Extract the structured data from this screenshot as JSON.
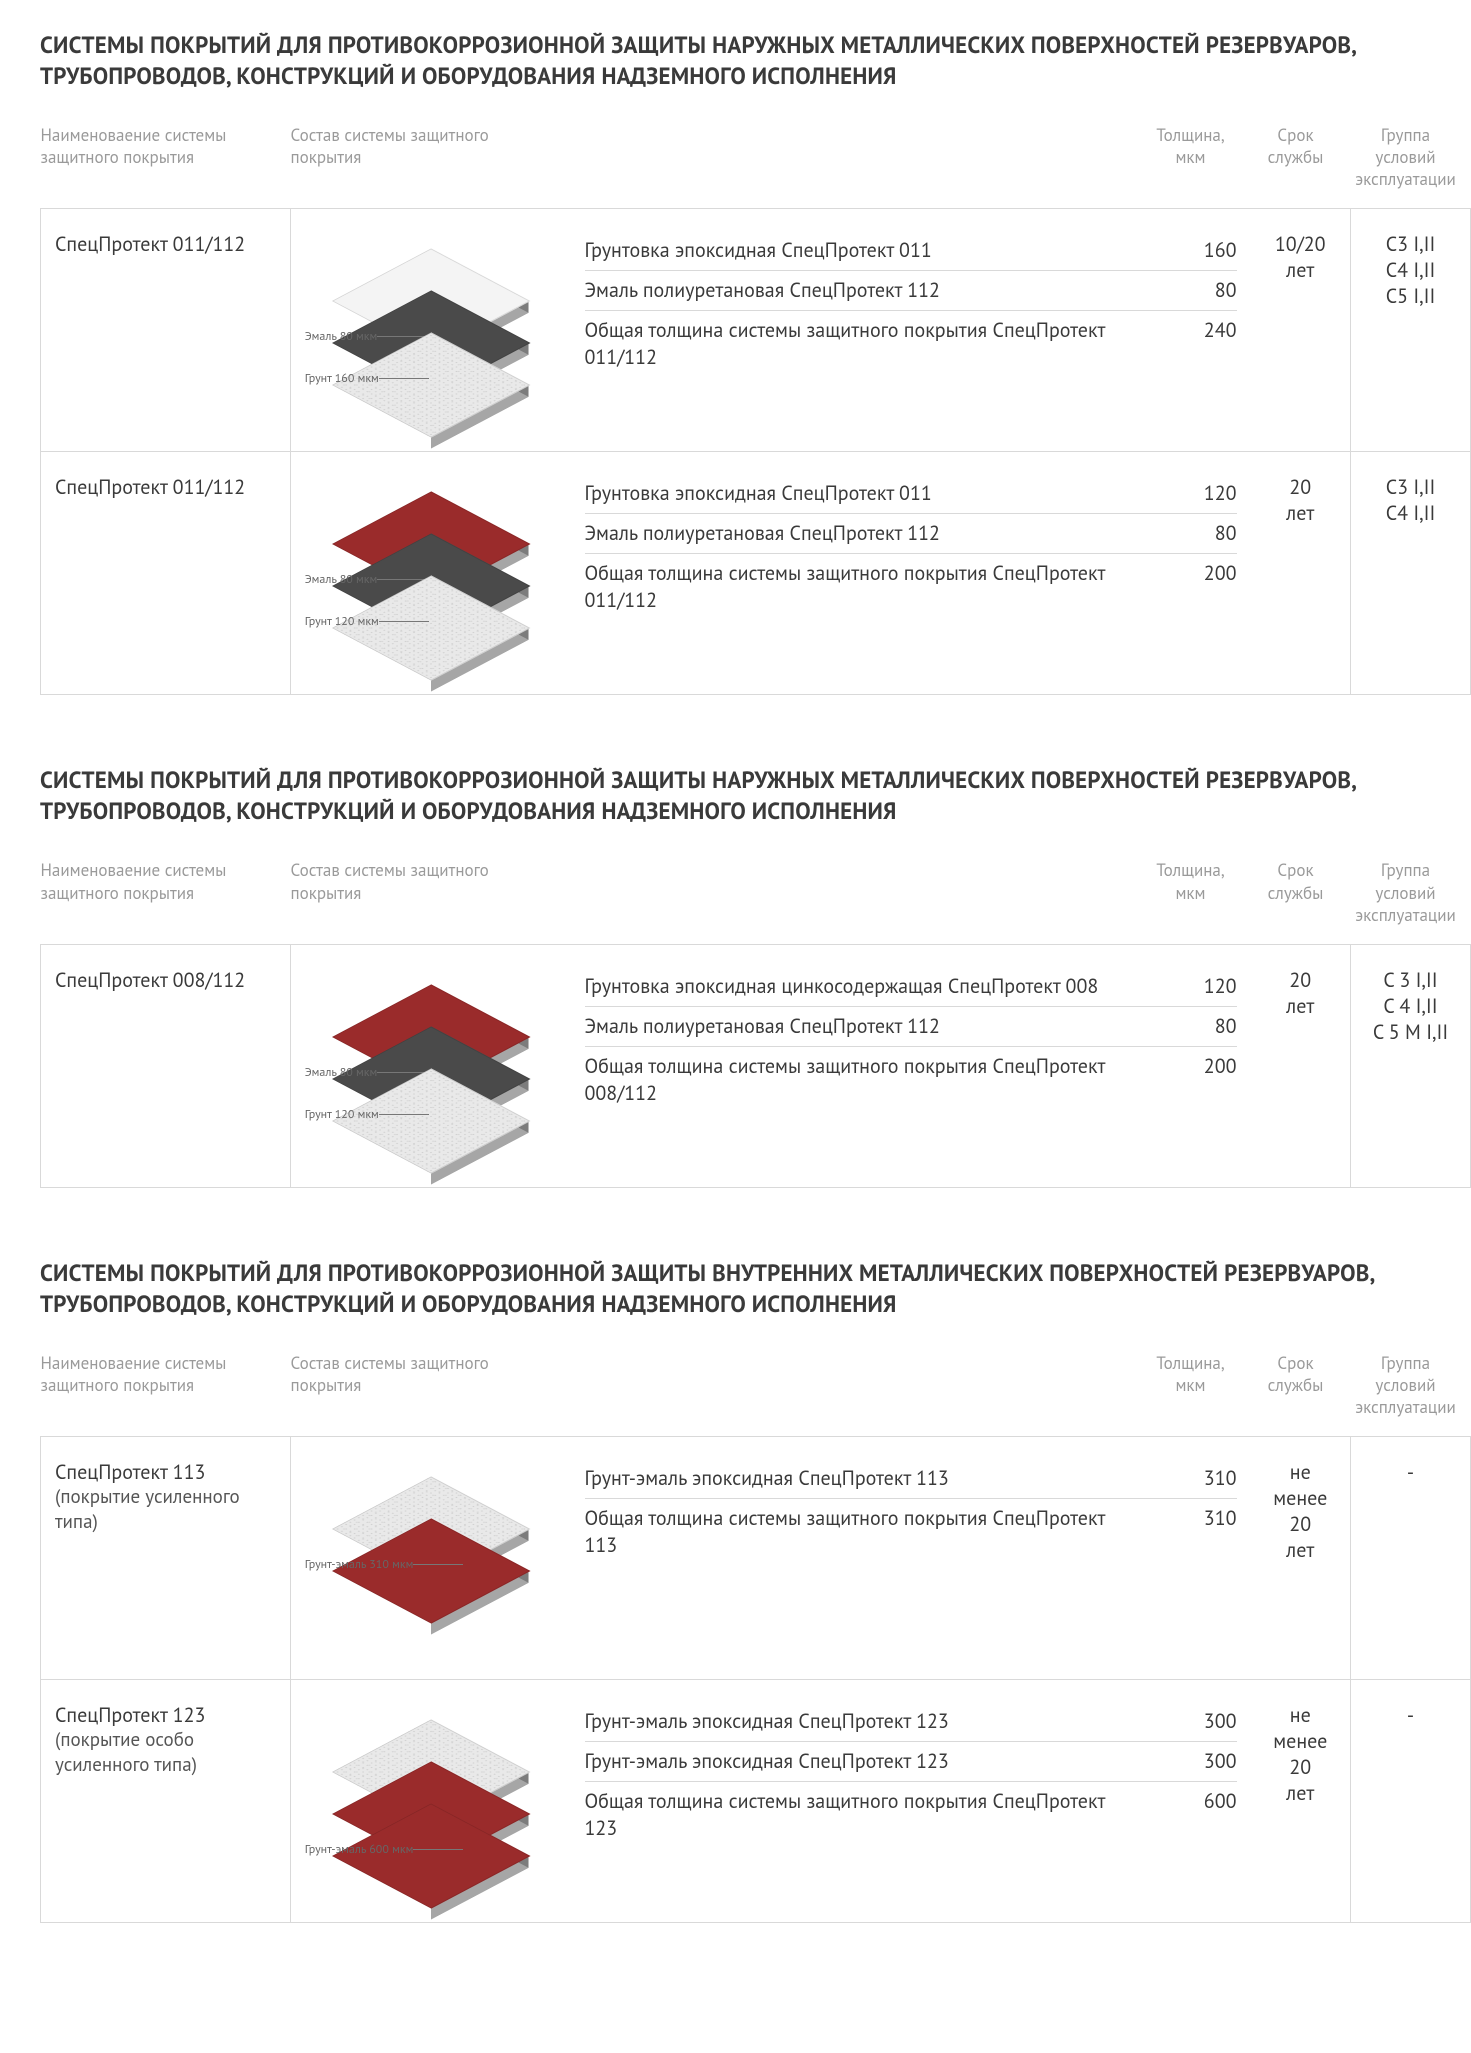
{
  "palette": {
    "text": "#3a3a3a",
    "muted": "#9a9a9a",
    "border": "#d9d9d9",
    "layer_white": "#f4f4f4",
    "layer_dark": "#4a4a4a",
    "layer_grain": "#e9e9e9",
    "layer_red": "#9a2b2b"
  },
  "headers": {
    "name": "Наименоваение системы защитного покрытия",
    "comp": "Состав системы защитного покрытия",
    "thick": "Толщина, мкм",
    "life": "Срок службы",
    "group": "Группа условий эксплуатации"
  },
  "sections": [
    {
      "title": "СИСТЕМЫ ПОКРЫТИЙ ДЛЯ ПРОТИВОКОРРОЗИОННОЙ ЗАЩИТЫ НАРУЖНЫХ МЕТАЛЛИЧЕСКИХ ПОВЕРХНОСТЕЙ РЕЗЕРВУАРОВ, ТРУБОПРОВОДОВ, КОНСТРУКЦИЙ И ОБОРУДОВАНИЯ НАДЗЕМНОГО ИСПОЛНЕНИЯ",
      "rows": [
        {
          "name": "СпецПротект 011/112",
          "life": "10/20 лет",
          "group": "С3 I,II\nС4 I,II\nС5 I,II",
          "layers": [
            {
              "color": "#f4f4f4",
              "texture": false,
              "label": ""
            },
            {
              "color": "#4a4a4a",
              "texture": false,
              "label": "Эмаль 80 мкм"
            },
            {
              "color": "#e9e9e9",
              "texture": true,
              "label": "Грунт 160 мкм"
            }
          ],
          "details": [
            {
              "label": "Грунтовка эпоксидная СпецПротект 011",
              "val": "160"
            },
            {
              "label": "Эмаль полиуретановая СпецПротект 112",
              "val": "80"
            },
            {
              "label": "Общая толщина системы защитного покрытия СпецПротект 011/112",
              "val": "240"
            }
          ]
        },
        {
          "name": "СпецПротект 011/112",
          "life": "20 лет",
          "group": "С3 I,II\nС4 I,II",
          "layers": [
            {
              "color": "#9a2b2b",
              "texture": false,
              "label": ""
            },
            {
              "color": "#4a4a4a",
              "texture": false,
              "label": "Эмаль 80 мкм"
            },
            {
              "color": "#e9e9e9",
              "texture": true,
              "label": "Грунт 120 мкм"
            }
          ],
          "details": [
            {
              "label": "Грунтовка эпоксидная СпецПротект 011",
              "val": "120"
            },
            {
              "label": "Эмаль полиуретановая СпецПротект 112",
              "val": "80"
            },
            {
              "label": "Общая толщина системы защитного покрытия СпецПротект 011/112",
              "val": "200"
            }
          ]
        }
      ]
    },
    {
      "title": "СИСТЕМЫ ПОКРЫТИЙ ДЛЯ ПРОТИВОКОРРОЗИОННОЙ ЗАЩИТЫ НАРУЖНЫХ МЕТАЛЛИЧЕСКИХ ПОВЕРХНОСТЕЙ РЕЗЕРВУАРОВ, ТРУБОПРОВОДОВ, КОНСТРУКЦИЙ И ОБОРУДОВАНИЯ НАДЗЕМНОГО ИСПОЛНЕНИЯ",
      "rows": [
        {
          "name": "СпецПротект 008/112",
          "life": "20 лет",
          "group": "С 3 I,II\nС 4 I,II\nС 5 М I,II",
          "layers": [
            {
              "color": "#9a2b2b",
              "texture": false,
              "label": ""
            },
            {
              "color": "#4a4a4a",
              "texture": false,
              "label": "Эмаль 80 мкм"
            },
            {
              "color": "#e9e9e9",
              "texture": true,
              "label": "Грунт 120 мкм"
            }
          ],
          "details": [
            {
              "label": "Грунтовка эпоксидная цинкосодержащая СпецПротект 008",
              "val": "120"
            },
            {
              "label": "Эмаль полиуретановая СпецПротект 112",
              "val": "80"
            },
            {
              "label": "Общая толщина системы защитного покрытия СпецПротект 008/112",
              "val": "200"
            }
          ]
        }
      ]
    },
    {
      "title": "СИСТЕМЫ ПОКРЫТИЙ ДЛЯ ПРОТИВОКОРРОЗИОННОЙ ЗАЩИТЫ ВНУТРЕННИХ МЕТАЛЛИЧЕСКИХ ПОВЕРХНОСТЕЙ РЕЗЕРВУАРОВ, ТРУБОПРОВОДОВ, КОНСТРУКЦИЙ И ОБОРУДОВАНИЯ НАДЗЕМНОГО ИСПОЛНЕНИЯ",
      "rows": [
        {
          "name": "СпецПротект 113",
          "name_sub": "(покрытие усиленного типа)",
          "life": "не менее 20 лет",
          "group": "-",
          "layers": [
            {
              "color": "#e9e9e9",
              "texture": true,
              "label": ""
            },
            {
              "color": "#9a2b2b",
              "texture": false,
              "label": "Грунт-эмаль 310 мкм"
            }
          ],
          "details": [
            {
              "label": "Грунт-эмаль эпоксидная СпецПротект 113",
              "val": "310"
            },
            {
              "label": "Общая толщина системы защитного покрытия СпецПротект 113",
              "val": "310"
            }
          ]
        },
        {
          "name": "СпецПротект 123",
          "name_sub": "(покрытие особо усиленного типа)",
          "life": "не менее 20 лет",
          "group": "-",
          "layers": [
            {
              "color": "#e9e9e9",
              "texture": true,
              "label": ""
            },
            {
              "color": "#9a2b2b",
              "texture": false,
              "label": ""
            },
            {
              "color": "#9a2b2b",
              "texture": false,
              "label": "Грунт-эмаль 600 мкм"
            }
          ],
          "details": [
            {
              "label": "Грунт-эмаль эпоксидная СпецПротект 123",
              "val": "300"
            },
            {
              "label": "Грунт-эмаль эпоксидная СпецПротект 123",
              "val": "300"
            },
            {
              "label": "Общая толщина системы защитного покрытия СпецПротект 123",
              "val": "600"
            }
          ]
        }
      ]
    }
  ]
}
